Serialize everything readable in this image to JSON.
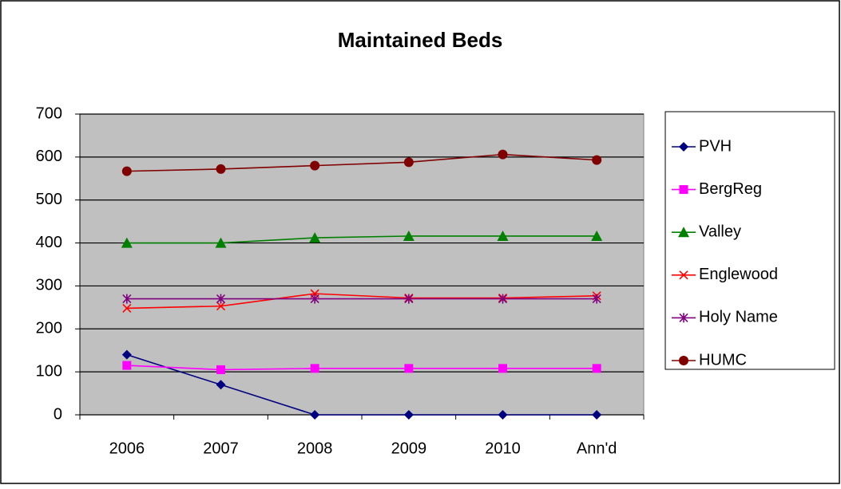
{
  "chart_data": {
    "type": "line",
    "title": "Maintained Beds",
    "categories": [
      "2006",
      "2007",
      "2008",
      "2009",
      "2010",
      "Ann'd"
    ],
    "series": [
      {
        "name": "PVH",
        "color": "#000080",
        "marker": "diamond",
        "values": [
          140,
          70,
          0,
          0,
          0,
          0
        ]
      },
      {
        "name": "BergReg",
        "color": "#ff00ff",
        "marker": "square",
        "values": [
          115,
          105,
          108,
          108,
          108,
          108
        ]
      },
      {
        "name": "Valley",
        "color": "#008000",
        "marker": "triangle",
        "values": [
          400,
          400,
          412,
          416,
          416,
          416
        ]
      },
      {
        "name": "Englewood",
        "color": "#ff0000",
        "marker": "x",
        "values": [
          248,
          253,
          282,
          272,
          272,
          277
        ]
      },
      {
        "name": "Holy Name",
        "color": "#800080",
        "marker": "star",
        "values": [
          270,
          270,
          270,
          270,
          270,
          270
        ]
      },
      {
        "name": "HUMC",
        "color": "#800000",
        "marker": "circle",
        "values": [
          567,
          572,
          580,
          588,
          606,
          593
        ]
      }
    ],
    "ylim": [
      0,
      700
    ],
    "yticks": [
      0,
      100,
      200,
      300,
      400,
      500,
      600,
      700
    ],
    "grid": true,
    "legend": "right",
    "plot_background": "#c0c0c0"
  }
}
